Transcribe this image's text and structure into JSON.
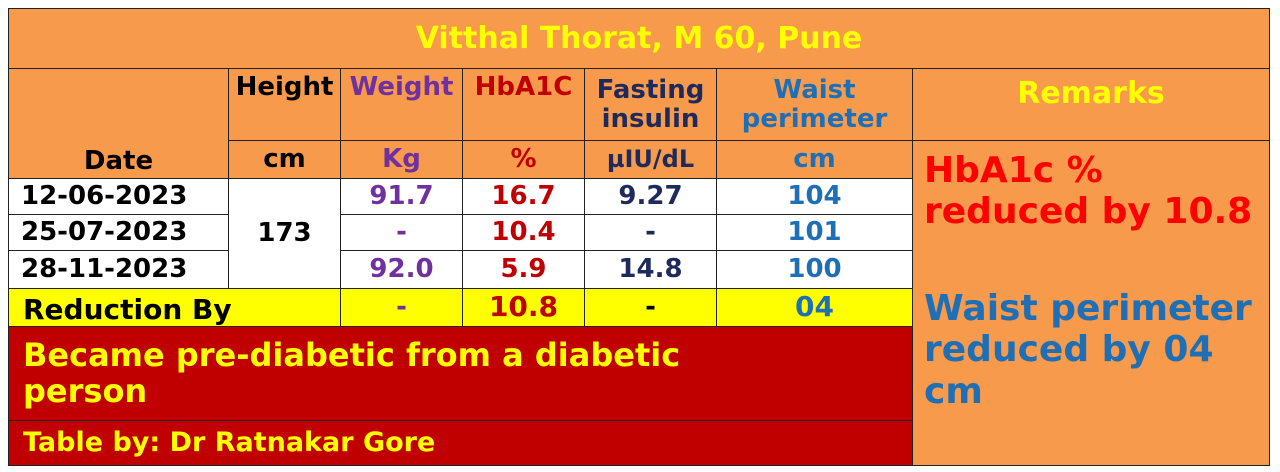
{
  "title": "Vitthal Thorat, M 60, Pune",
  "headers": {
    "date": "Date",
    "height": "Height",
    "height_unit": "cm",
    "weight": "Weight",
    "weight_unit": "Kg",
    "hba1c": "HbA1C",
    "hba1c_unit": "%",
    "insulin": "Fasting insulin",
    "insulin_unit": "µIU/dL",
    "waist": "Waist perimeter",
    "waist_unit": "cm",
    "remarks": "Remarks"
  },
  "rows": [
    {
      "date": "12-06-2023",
      "weight": "91.7",
      "hba1c": "16.7",
      "insulin": "9.27",
      "waist": "104"
    },
    {
      "date": "25-07-2023",
      "weight": "-",
      "hba1c": "10.4",
      "insulin": "-",
      "waist": "101"
    },
    {
      "date": "28-11-2023",
      "weight": "92.0",
      "hba1c": "5.9",
      "insulin": "14.8",
      "waist": "100"
    }
  ],
  "height_value": "173",
  "reduction": {
    "label": "Reduction By",
    "weight": "-",
    "hba1c": "10.8",
    "insulin": "-",
    "waist": "04"
  },
  "summary": "Became pre-diabetic from a diabetic person",
  "credit": "Table by: Dr Ratnakar Gore",
  "remarks": {
    "hba1c": "HbA1c % reduced by 10.8",
    "waist": "Waist perimeter reduced by 04 cm"
  }
}
